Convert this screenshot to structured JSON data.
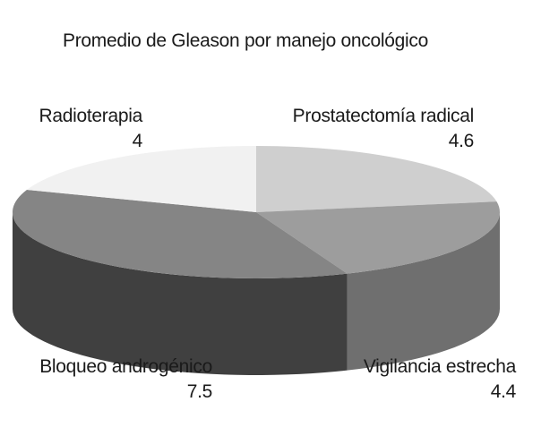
{
  "chart_data": {
    "type": "pie",
    "variant": "3d",
    "title": "Promedio de Gleason por manejo oncológico",
    "slices": [
      {
        "label": "Prostatectomía radical",
        "value": 4.6,
        "value_label": "4.6",
        "color": "#cfcfcf",
        "side_color": "#8f8f8f"
      },
      {
        "label": "Vigilancia estrecha",
        "value": 4.4,
        "value_label": "4.4",
        "color": "#9d9d9d",
        "side_color": "#6f6f6f"
      },
      {
        "label": "Bloqueo androgénico",
        "value": 7.5,
        "value_label": "7.5",
        "color": "#858585",
        "side_color": "#404040"
      },
      {
        "label": "Radioterapia",
        "value": 4,
        "value_label": "4",
        "color": "#f1f1f1",
        "side_color": "#bdbdbd"
      }
    ],
    "legend": "none"
  }
}
